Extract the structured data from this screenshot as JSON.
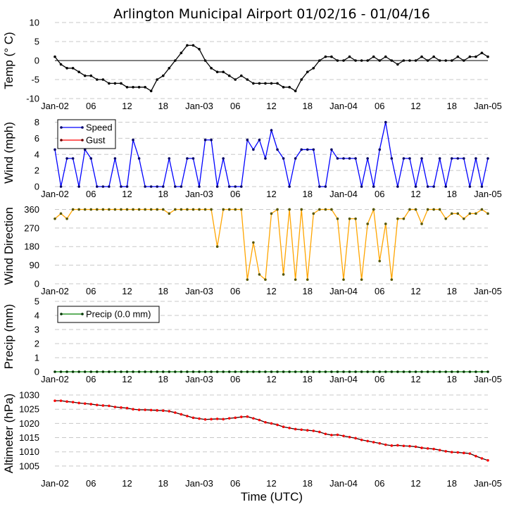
{
  "chart_data": [
    {
      "type": "line",
      "title": "Arlington Municipal Airport 01/02/16 - 01/04/16",
      "xlabel": "Time (UTC)",
      "xtick_labels": [
        "Jan-02",
        "06",
        "12",
        "18",
        "Jan-03",
        "06",
        "12",
        "18",
        "Jan-04",
        "06",
        "12",
        "18",
        "Jan-05"
      ],
      "x": [
        "2016-01-02 00:00",
        "2016-01-02 01:00",
        "2016-01-02 02:00",
        "2016-01-02 03:00",
        "2016-01-02 04:00",
        "2016-01-02 05:00",
        "2016-01-02 06:00",
        "2016-01-02 07:00",
        "2016-01-02 08:00",
        "2016-01-02 09:00",
        "2016-01-02 10:00",
        "2016-01-02 11:00",
        "2016-01-02 12:00",
        "2016-01-02 13:00",
        "2016-01-02 14:00",
        "2016-01-02 15:00",
        "2016-01-02 16:00",
        "2016-01-02 17:00",
        "2016-01-02 18:00",
        "2016-01-02 19:00",
        "2016-01-02 20:00",
        "2016-01-02 21:00",
        "2016-01-02 22:00",
        "2016-01-02 23:00",
        "2016-01-03 00:00",
        "2016-01-03 01:00",
        "2016-01-03 02:00",
        "2016-01-03 03:00",
        "2016-01-03 04:00",
        "2016-01-03 05:00",
        "2016-01-03 06:00",
        "2016-01-03 07:00",
        "2016-01-03 08:00",
        "2016-01-03 09:00",
        "2016-01-03 10:00",
        "2016-01-03 11:00",
        "2016-01-03 12:00",
        "2016-01-03 13:00",
        "2016-01-03 14:00",
        "2016-01-03 15:00",
        "2016-01-03 16:00",
        "2016-01-03 17:00",
        "2016-01-03 18:00",
        "2016-01-03 19:00",
        "2016-01-03 20:00",
        "2016-01-03 21:00",
        "2016-01-03 22:00",
        "2016-01-03 23:00",
        "2016-01-04 00:00",
        "2016-01-04 01:00",
        "2016-01-04 02:00",
        "2016-01-04 03:00",
        "2016-01-04 04:00",
        "2016-01-04 05:00",
        "2016-01-04 06:00",
        "2016-01-04 07:00",
        "2016-01-04 08:00",
        "2016-01-04 09:00",
        "2016-01-04 10:00",
        "2016-01-04 11:00",
        "2016-01-04 12:00",
        "2016-01-04 13:00",
        "2016-01-04 14:00",
        "2016-01-04 15:00",
        "2016-01-04 16:00",
        "2016-01-04 17:00",
        "2016-01-04 18:00",
        "2016-01-04 19:00",
        "2016-01-04 20:00",
        "2016-01-04 21:00",
        "2016-01-04 22:00",
        "2016-01-04 23:00",
        "2016-01-05 00:00"
      ],
      "xlim": [
        "2016-01-02 00:00",
        "2016-01-05 00:00"
      ],
      "grid": true,
      "panels": [
        {
          "ylabel": "Temp (° C)",
          "ylim": [
            -10,
            10
          ],
          "yticks": [
            10,
            5,
            0,
            -5,
            -10
          ],
          "zero_line": true,
          "series": [
            {
              "color": "#000000",
              "marker_color": "#000000",
              "values": [
                1,
                -1,
                -2,
                -2,
                -3,
                -4,
                -4,
                -5,
                -5,
                -6,
                -6,
                -6,
                -7,
                -7,
                -7,
                -7,
                -8,
                -5,
                -4,
                -2,
                0,
                2,
                4,
                4,
                3,
                0,
                -2,
                -3,
                -3,
                -4,
                -5,
                -4,
                -5,
                -6,
                -6,
                -6,
                -6,
                -6,
                -7,
                -7,
                -8,
                -5,
                -3,
                -2,
                0,
                1,
                1,
                0,
                0,
                1,
                0,
                0,
                0,
                1,
                0,
                1,
                0,
                -1,
                0,
                0,
                0,
                1,
                0,
                1,
                0,
                0,
                0,
                1,
                0,
                1,
                1,
                2,
                1
              ]
            }
          ]
        },
        {
          "ylabel": "Wind (mph)",
          "ylim": [
            0,
            8.4
          ],
          "yticks": [
            8,
            6,
            4,
            2,
            0
          ],
          "legend": "top-left",
          "series": [
            {
              "name": "Speed",
              "color": "#0000ff",
              "marker_color": "#000066",
              "values": [
                4.6,
                0,
                3.5,
                3.5,
                0,
                4.6,
                3.5,
                0,
                0,
                0,
                3.5,
                0,
                0,
                5.8,
                3.5,
                0,
                0,
                0,
                0,
                3.5,
                0,
                0,
                3.5,
                3.5,
                0,
                5.8,
                5.8,
                0,
                3.5,
                0,
                0,
                0,
                5.8,
                4.6,
                5.8,
                3.5,
                7,
                4.6,
                3.5,
                0,
                3.5,
                4.6,
                4.6,
                4.6,
                0,
                0,
                4.6,
                3.5,
                3.5,
                3.5,
                3.5,
                0,
                3.5,
                0,
                4.6,
                8,
                3.5,
                0,
                3.5,
                3.5,
                0,
                3.5,
                0,
                0,
                3.5,
                0,
                3.5,
                3.5,
                3.5,
                0,
                3.5,
                0,
                3.5
              ]
            },
            {
              "name": "Gust",
              "color": "#ff0000",
              "marker_color": "#660000",
              "values": []
            }
          ]
        },
        {
          "ylabel": "Wind Direction",
          "ylim": [
            0,
            365
          ],
          "yticks": [
            360,
            270,
            180,
            90,
            0
          ],
          "series": [
            {
              "color": "#ffa500",
              "marker_color": "#555500",
              "values": [
                315,
                340,
                315,
                360,
                360,
                360,
                360,
                360,
                360,
                360,
                360,
                360,
                360,
                360,
                360,
                360,
                360,
                360,
                360,
                340,
                360,
                360,
                360,
                360,
                360,
                360,
                360,
                180,
                360,
                360,
                360,
                360,
                20,
                200,
                45,
                20,
                340,
                360,
                45,
                360,
                20,
                360,
                20,
                340,
                360,
                360,
                360,
                315,
                20,
                315,
                315,
                20,
                290,
                360,
                110,
                290,
                20,
                315,
                315,
                360,
                360,
                290,
                360,
                360,
                360,
                315,
                340,
                340,
                315,
                340,
                340,
                360,
                340
              ]
            }
          ]
        },
        {
          "ylabel": "Precip (mm)",
          "ylim": [
            0,
            5
          ],
          "yticks": [
            5,
            4,
            3,
            2,
            1,
            0
          ],
          "legend": "top-left",
          "series": [
            {
              "name": "Precip (0.0 mm)",
              "color": "#008000",
              "marker_color": "#003300",
              "values": [
                0,
                0,
                0,
                0,
                0,
                0,
                0,
                0,
                0,
                0,
                0,
                0,
                0,
                0,
                0,
                0,
                0,
                0,
                0,
                0,
                0,
                0,
                0,
                0,
                0,
                0,
                0,
                0,
                0,
                0,
                0,
                0,
                0,
                0,
                0,
                0,
                0,
                0,
                0,
                0,
                0,
                0,
                0,
                0,
                0,
                0,
                0,
                0,
                0,
                0,
                0,
                0,
                0,
                0,
                0,
                0,
                0,
                0,
                0,
                0,
                0,
                0,
                0,
                0,
                0,
                0,
                0,
                0,
                0,
                0,
                0,
                0,
                0
              ]
            }
          ]
        },
        {
          "ylabel": "Altimeter (hPa)",
          "ylim": [
            1001.5,
            1031.5
          ],
          "yticks": [
            1030,
            1025,
            1020,
            1015,
            1010,
            1005
          ],
          "series": [
            {
              "color": "#330000",
              "marker_color": "#ff0000",
              "values": [
                1028,
                1028,
                1027.7,
                1027.5,
                1027.2,
                1027,
                1026.8,
                1026.5,
                1026.3,
                1026.2,
                1025.8,
                1025.6,
                1025.4,
                1025,
                1024.8,
                1024.8,
                1024.7,
                1024.6,
                1024.5,
                1024.3,
                1023.8,
                1023.2,
                1022.6,
                1022,
                1021.7,
                1021.4,
                1021.5,
                1021.6,
                1021.5,
                1021.8,
                1022,
                1022.3,
                1022.4,
                1021.8,
                1021.2,
                1020.4,
                1020,
                1019.5,
                1018.8,
                1018.4,
                1018,
                1017.8,
                1017.6,
                1017.4,
                1017,
                1016.3,
                1015.9,
                1016,
                1015.6,
                1015.2,
                1014.8,
                1014.2,
                1013.8,
                1013.4,
                1013,
                1012.5,
                1012.2,
                1012.3,
                1012.1,
                1012,
                1011.8,
                1011.4,
                1011.2,
                1011,
                1010.6,
                1010.2,
                1009.9,
                1009.8,
                1009.6,
                1009.4,
                1008.5,
                1007.7,
                1007
              ]
            }
          ]
        }
      ]
    }
  ]
}
